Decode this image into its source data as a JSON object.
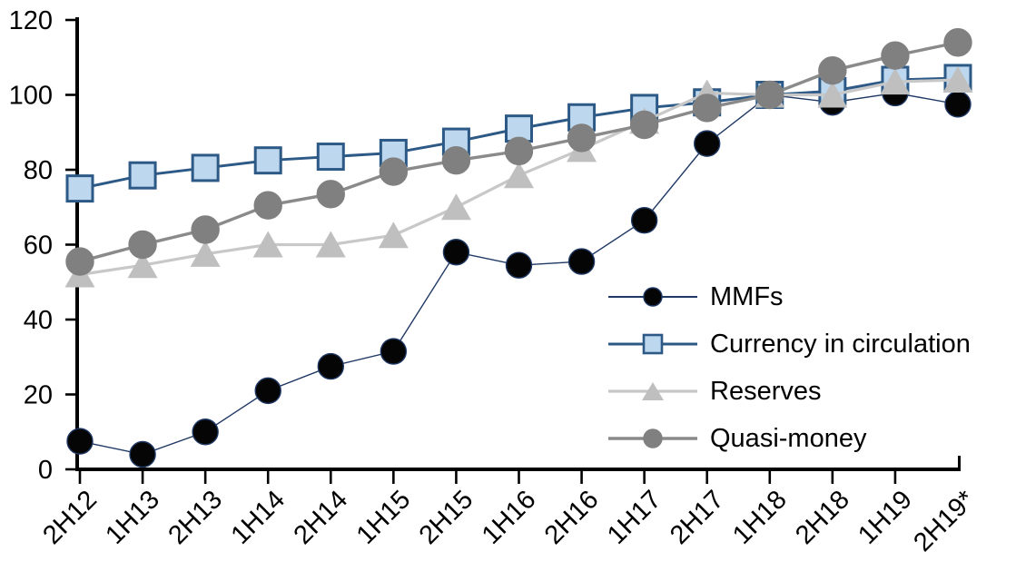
{
  "chart_data": {
    "type": "line",
    "title": "",
    "xlabel": "",
    "ylabel": "",
    "categories": [
      "2H12",
      "1H13",
      "2H13",
      "1H14",
      "2H14",
      "1H15",
      "2H15",
      "1H16",
      "2H16",
      "1H17",
      "2H17",
      "1H18",
      "2H18",
      "1H19",
      "2H19*"
    ],
    "series": [
      {
        "name": "MMFs",
        "marker": "circle",
        "marker_fill": "#050505",
        "marker_stroke": "#1F3864",
        "line_color": "#1F3864",
        "line_width": 1.4,
        "marker_size": 14,
        "values": [
          7.5,
          4,
          10,
          21,
          27.5,
          31.5,
          58,
          54.5,
          55.5,
          66.5,
          87,
          100,
          98,
          100.5,
          97.5
        ]
      },
      {
        "name": "Currency in circulation",
        "marker": "square",
        "marker_fill": "#BDD7EE",
        "marker_stroke": "#2D5986",
        "line_color": "#2D5986",
        "line_width": 3,
        "marker_size": 14,
        "values": [
          75,
          78.5,
          80.5,
          82.5,
          83.5,
          84.5,
          87.5,
          91,
          94,
          96.5,
          98,
          100,
          101,
          104,
          104.5
        ]
      },
      {
        "name": "Reserves",
        "marker": "triangle",
        "marker_fill": "#BFBFBF",
        "marker_stroke": "#BFBFBF",
        "line_color": "#C8C8C8",
        "line_width": 3.2,
        "marker_size": 15,
        "values": [
          52,
          54.5,
          57.5,
          60,
          60,
          62.5,
          70,
          78.5,
          85.5,
          93,
          100.5,
          100,
          100,
          103.5,
          104
        ]
      },
      {
        "name": "Quasi-money",
        "marker": "circle",
        "marker_fill": "#808080",
        "marker_stroke": "#808080",
        "line_color": "#8A8A8A",
        "line_width": 3.4,
        "marker_size": 15,
        "values": [
          55.5,
          60,
          64,
          70.5,
          73.5,
          79.5,
          82.5,
          85,
          88.5,
          92,
          96.5,
          100,
          106.5,
          110.5,
          114
        ]
      }
    ],
    "ylim": [
      0,
      120
    ],
    "y_ticks": [
      0,
      20,
      40,
      60,
      80,
      100,
      120
    ],
    "grid": false,
    "legend_position": "inside-right",
    "axis_color": "#000000"
  }
}
